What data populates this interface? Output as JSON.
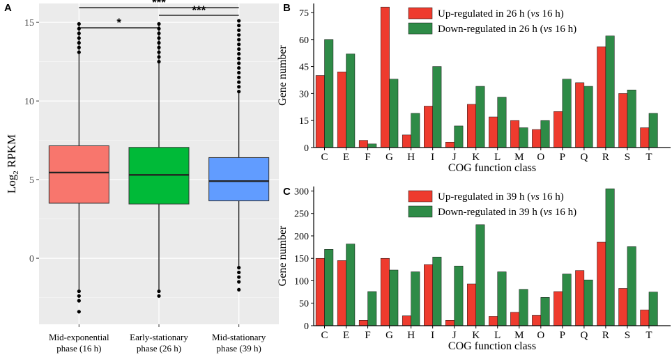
{
  "colors": {
    "up": "#ee3b2e",
    "down": "#2e8b47",
    "box_a": "#f8766d",
    "box_b": "#00ba38",
    "box_c": "#619cff",
    "panel_bg": "#ebebeb"
  },
  "chart_data": [
    {
      "panel": "A",
      "type": "box",
      "ylabel_main": "Log",
      "ylabel_sub": "2",
      "ylabel_rest": " RPKM",
      "ylim": [
        -4.2,
        16.2
      ],
      "yticks": [
        0,
        5,
        10,
        15
      ],
      "ytick_labels": [
        "0",
        "5",
        "10",
        "15"
      ],
      "categories": [
        {
          "line1": "Mid-exponential",
          "line2": "phase (16 h)"
        },
        {
          "line1": "Early-stationary",
          "line2": "phase (26 h)"
        },
        {
          "line1": "Mid-stationary",
          "line2": "phase (39 h)"
        }
      ],
      "boxes": [
        {
          "q1": 3.5,
          "median": 5.45,
          "q3": 7.15,
          "whisker_low": -2.0,
          "whisker_high": 14.8,
          "outliers_high": [
            14.9,
            14.6,
            14.3,
            14.0,
            13.7,
            13.4,
            13.1
          ],
          "outliers_low": [
            -2.1,
            -2.4,
            -2.7,
            -3.4
          ]
        },
        {
          "q1": 3.45,
          "median": 5.3,
          "q3": 7.05,
          "whisker_low": -2.0,
          "whisker_high": 14.8,
          "outliers_high": [
            14.9,
            14.6,
            14.3,
            14.0,
            13.7,
            13.4,
            13.1,
            12.8,
            12.5
          ],
          "outliers_low": [
            -2.1,
            -2.4
          ]
        },
        {
          "q1": 3.65,
          "median": 4.9,
          "q3": 6.4,
          "whisker_low": -0.5,
          "whisker_high": 10.5,
          "outliers_high": [
            10.6,
            10.9,
            11.2,
            11.5,
            11.8,
            12.1,
            12.4,
            12.7,
            13.0,
            13.3,
            13.6,
            13.9,
            14.2,
            14.5,
            14.8,
            15.1
          ],
          "outliers_low": [
            -0.6,
            -0.9,
            -1.2,
            -1.5,
            -2.0
          ]
        }
      ],
      "significance": [
        {
          "from": 0,
          "to": 1,
          "label": "*"
        },
        {
          "from": 0,
          "to": 2,
          "label": "***"
        },
        {
          "from": 1,
          "to": 2,
          "label": "***"
        }
      ]
    },
    {
      "panel": "B",
      "type": "bar",
      "ylabel": "Gene number",
      "xlabel": "COG function class",
      "ylim": [
        0,
        80
      ],
      "yticks": [
        0,
        15,
        30,
        45,
        60,
        75
      ],
      "ytick_labels": [
        "0",
        "15",
        "30",
        "45",
        "60",
        "75"
      ],
      "categories": [
        "C",
        "E",
        "F",
        "G",
        "H",
        "I",
        "J",
        "K",
        "L",
        "M",
        "O",
        "P",
        "Q",
        "R",
        "S",
        "T"
      ],
      "series": [
        {
          "name": "Up-regulated in 26 h (vs 16 h)",
          "legend_pre": "Up-regulated in 26 h (",
          "legend_em": "vs",
          "legend_post": " 16 h)",
          "values": [
            40,
            42,
            4,
            78,
            7,
            23,
            3,
            24,
            17,
            15,
            10,
            20,
            36,
            56,
            30,
            11
          ]
        },
        {
          "name": "Down-regulated in 26 h (vs 16 h)",
          "legend_pre": "Down-regulated in 26 h (",
          "legend_em": "vs",
          "legend_post": " 16 h)",
          "values": [
            60,
            52,
            2,
            38,
            19,
            45,
            12,
            34,
            28,
            11,
            15,
            38,
            34,
            62,
            32,
            19
          ]
        }
      ]
    },
    {
      "panel": "C",
      "type": "bar",
      "ylabel": "Gene number",
      "xlabel": "COG function class",
      "ylim": [
        0,
        310
      ],
      "yticks": [
        0,
        50,
        100,
        150,
        200,
        250,
        300
      ],
      "ytick_labels": [
        "0",
        "50",
        "100",
        "150",
        "200",
        "250",
        "300"
      ],
      "categories": [
        "C",
        "E",
        "F",
        "G",
        "H",
        "I",
        "J",
        "K",
        "L",
        "M",
        "O",
        "P",
        "Q",
        "R",
        "S",
        "T"
      ],
      "series": [
        {
          "name": "Up-regulated in 39 h (vs 16 h)",
          "legend_pre": "Up-regulated in 39 h (",
          "legend_em": "vs",
          "legend_post": " 16 h)",
          "values": [
            150,
            145,
            12,
            150,
            22,
            136,
            12,
            93,
            21,
            30,
            23,
            76,
            123,
            186,
            83,
            35
          ]
        },
        {
          "name": "Down-regulated in 39 h (vs 16 h)",
          "legend_pre": "Down-regulated in 39 h (",
          "legend_em": "vs",
          "legend_post": " 16 h)",
          "values": [
            170,
            182,
            76,
            124,
            120,
            153,
            133,
            225,
            120,
            81,
            63,
            115,
            102,
            305,
            176,
            75
          ]
        }
      ]
    }
  ]
}
